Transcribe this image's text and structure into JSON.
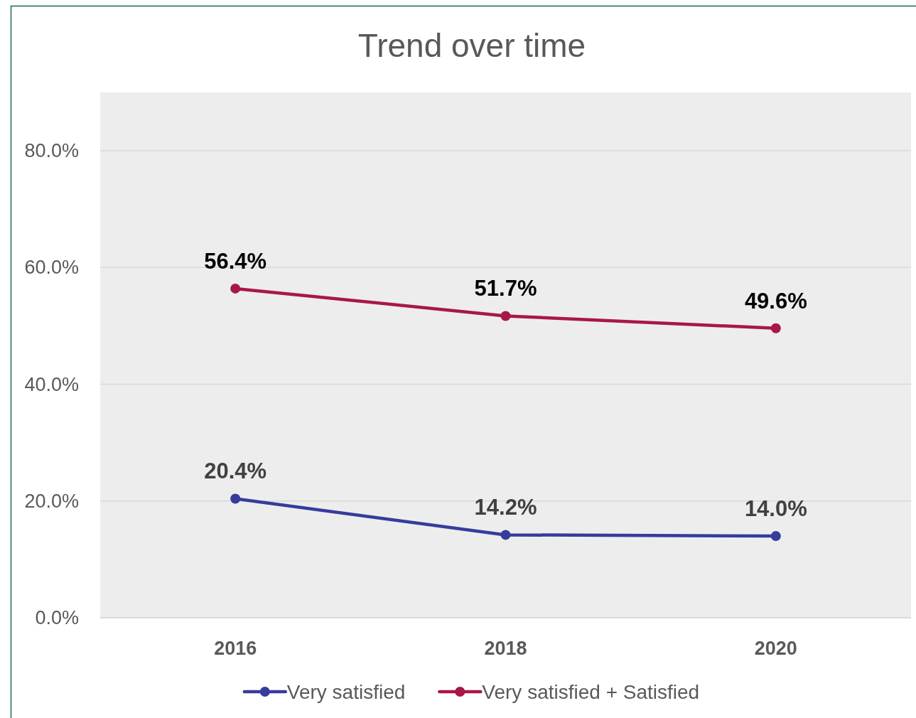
{
  "chart_data": {
    "type": "line",
    "title": "Trend over time",
    "categories": [
      "2016",
      "2018",
      "2020"
    ],
    "series": [
      {
        "name": "Very satisfied",
        "color": "#363c9c",
        "values": [
          20.4,
          14.2,
          14.0
        ],
        "value_labels": [
          "20.4%",
          "14.2%",
          "14.0%"
        ]
      },
      {
        "name": "Very satisfied + Satisfied",
        "color": "#a8174a",
        "values": [
          56.4,
          51.7,
          49.6
        ],
        "value_labels": [
          "56.4%",
          "51.7%",
          "49.6%"
        ]
      }
    ],
    "ylim": [
      0,
      90
    ],
    "yticks": [
      {
        "value": 0,
        "label": "0.0%"
      },
      {
        "value": 20,
        "label": "20.0%"
      },
      {
        "value": 40,
        "label": "40.0%"
      },
      {
        "value": 60,
        "label": "60.0%"
      },
      {
        "value": 80,
        "label": "80.0%"
      }
    ],
    "grid": "y",
    "legend": "bottom",
    "marker": "circle"
  }
}
